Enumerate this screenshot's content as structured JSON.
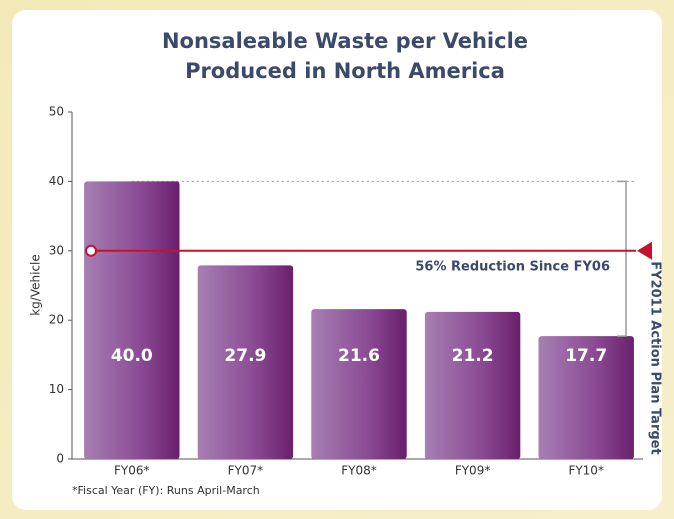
{
  "chart_data": {
    "type": "bar",
    "title": [
      "Nonsaleable Waste per Vehicle",
      "Produced in North America"
    ],
    "ylabel": "kg/Vehicle",
    "categories": [
      "FY06*",
      "FY07*",
      "FY08*",
      "FY09*",
      "FY10*"
    ],
    "values": [
      40.0,
      27.9,
      21.6,
      21.2,
      17.7
    ],
    "value_labels": [
      "40.0",
      "27.9",
      "21.6",
      "21.2",
      "17.7"
    ],
    "ylim": [
      0,
      50
    ],
    "yticks": [
      0,
      10,
      20,
      30,
      40,
      50
    ],
    "target": 30,
    "target_color": "#c8102e",
    "annotations": [
      "56% Reduction Since FY06",
      "FY2011 Action Plan Target"
    ],
    "footnote": "*Fiscal Year (FY): Runs April-March"
  }
}
